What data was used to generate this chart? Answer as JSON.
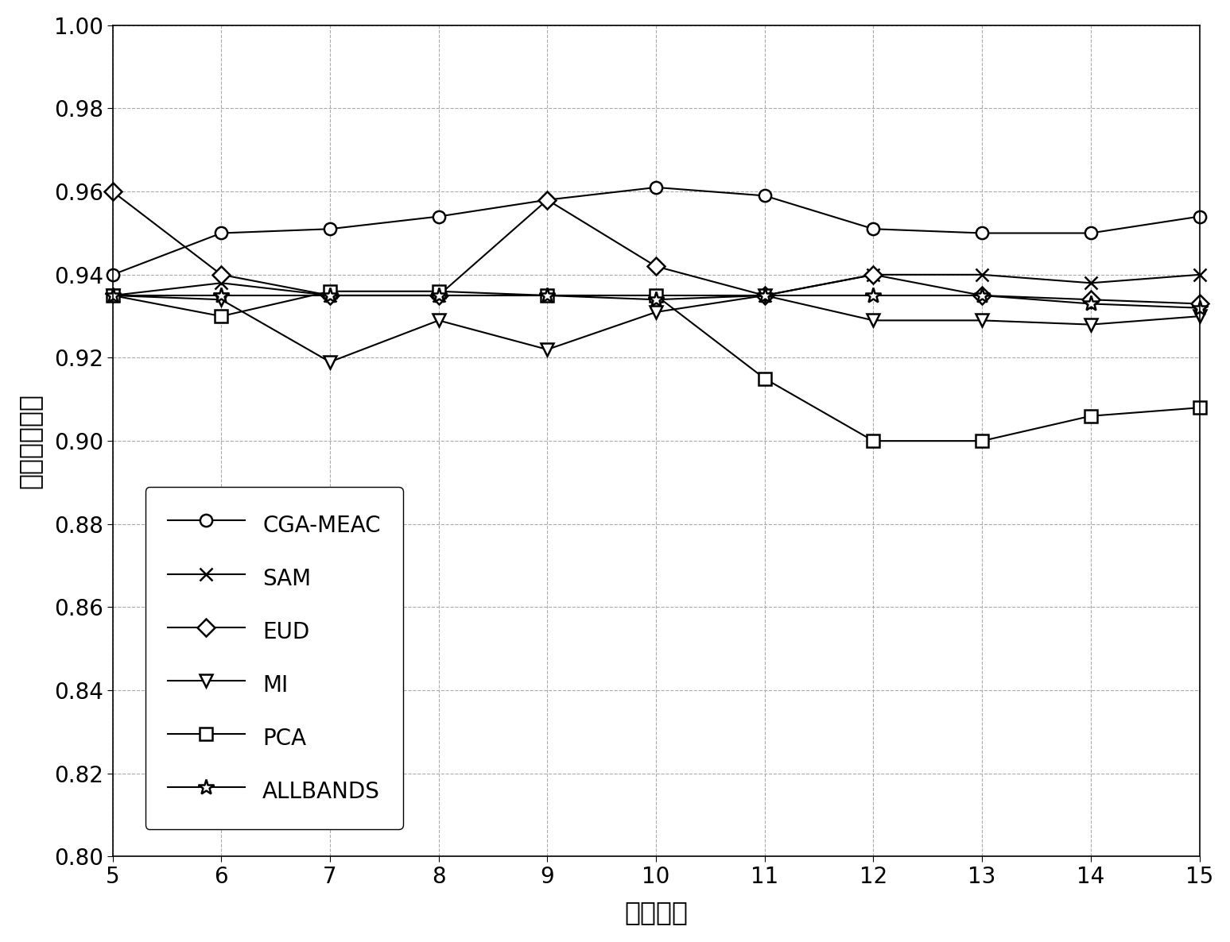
{
  "x": [
    5,
    6,
    7,
    8,
    9,
    10,
    11,
    12,
    13,
    14,
    15
  ],
  "CGA-MEAC": [
    0.94,
    0.95,
    0.951,
    0.954,
    0.958,
    0.961,
    0.959,
    0.951,
    0.95,
    0.95,
    0.954
  ],
  "SAM": [
    0.935,
    0.938,
    0.935,
    0.935,
    0.935,
    0.935,
    0.935,
    0.94,
    0.94,
    0.938,
    0.94
  ],
  "EUD": [
    0.96,
    0.94,
    0.935,
    0.935,
    0.958,
    0.942,
    0.935,
    0.94,
    0.935,
    0.934,
    0.933
  ],
  "MI": [
    0.935,
    0.934,
    0.919,
    0.929,
    0.922,
    0.931,
    0.935,
    0.929,
    0.929,
    0.928,
    0.93
  ],
  "PCA": [
    0.935,
    0.93,
    0.936,
    0.936,
    0.935,
    0.935,
    0.915,
    0.9,
    0.9,
    0.906,
    0.908
  ],
  "ALLBANDS": [
    0.935,
    0.935,
    0.935,
    0.935,
    0.935,
    0.934,
    0.935,
    0.935,
    0.935,
    0.933,
    0.932
  ],
  "xlabel": "特征数目",
  "ylabel": "总体分类精度",
  "xlim": [
    5,
    15
  ],
  "ylim": [
    0.8,
    1.0
  ],
  "yticks": [
    0.8,
    0.82,
    0.84,
    0.86,
    0.88,
    0.9,
    0.92,
    0.94,
    0.96,
    0.98,
    1.0
  ],
  "xticks": [
    5,
    6,
    7,
    8,
    9,
    10,
    11,
    12,
    13,
    14,
    15
  ],
  "background_color": "#ffffff",
  "grid_color": "#aaaaaa",
  "line_color": "#000000",
  "series": [
    {
      "label": "CGA-MEAC",
      "marker": "o"
    },
    {
      "label": "SAM",
      "marker": "x"
    },
    {
      "label": "EUD",
      "marker": "D"
    },
    {
      "label": "MI",
      "marker": "v"
    },
    {
      "label": "PCA",
      "marker": "s"
    },
    {
      "label": "ALLBANDS",
      "marker": "*"
    }
  ]
}
